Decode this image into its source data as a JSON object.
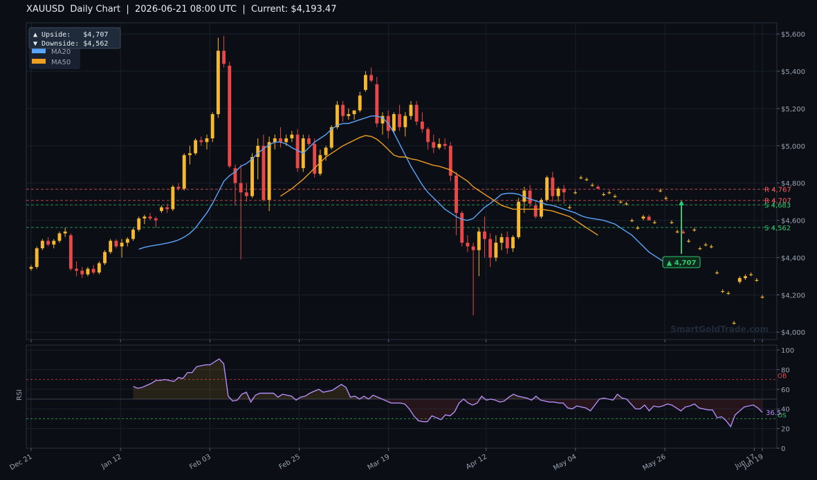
{
  "header": {
    "title": "XAUUSD  Daily Chart  |  2026-06-21 08:00 UTC  |  Current: $4,193.47"
  },
  "legend": {
    "upside": "▲ Upside:   $4,707",
    "downside": "▼ Downside: $4,562",
    "ma20_label": "MA20",
    "ma50_label": "MA50"
  },
  "watermark": "SmartGoldTrade.com",
  "target_label": "▲ 4,707",
  "chart_data": [
    {
      "type": "candlestick",
      "title": "XAUUSD Daily Chart",
      "ylim": [
        3960,
        5660
      ],
      "yticks": [
        4000,
        4200,
        4400,
        4600,
        4800,
        5000,
        5200,
        5400,
        5600
      ],
      "ytick_labels": [
        "$4,000",
        "$4,200",
        "$4,400",
        "$4,600",
        "$4,800",
        "$5,000",
        "$5,200",
        "$5,400",
        "$5,600"
      ],
      "xticks": [
        {
          "date": "2025-12-21",
          "label": "Dec 21"
        },
        {
          "date": "2026-01-12",
          "label": "Jan 12"
        },
        {
          "date": "2026-02-03",
          "label": "Feb 03"
        },
        {
          "date": "2026-02-25",
          "label": "Feb 25"
        },
        {
          "date": "2026-03-19",
          "label": "Mar 19"
        },
        {
          "date": "2026-04-12",
          "label": "Apr 12"
        },
        {
          "date": "2026-05-04",
          "label": "May 04"
        },
        {
          "date": "2026-05-26",
          "label": "May 26"
        },
        {
          "date": "2026-06-17",
          "label": "Jun 17"
        },
        {
          "date": "2026-06-19",
          "label": "Jun 19"
        }
      ],
      "date_range": [
        "2025-12-21",
        "2026-06-19"
      ],
      "ohlc": [
        [
          4340,
          4360,
          4330,
          4350
        ],
        [
          4350,
          4460,
          4340,
          4450
        ],
        [
          4450,
          4500,
          4440,
          4490
        ],
        [
          4490,
          4510,
          4460,
          4470
        ],
        [
          4470,
          4500,
          4450,
          4490
        ],
        [
          4490,
          4540,
          4480,
          4530
        ],
        [
          4530,
          4560,
          4510,
          4540
        ],
        [
          4520,
          4530,
          4330,
          4340
        ],
        [
          4340,
          4380,
          4300,
          4330
        ],
        [
          4330,
          4350,
          4290,
          4310
        ],
        [
          4310,
          4350,
          4300,
          4340
        ],
        [
          4340,
          4360,
          4310,
          4320
        ],
        [
          4320,
          4380,
          4310,
          4370
        ],
        [
          4370,
          4440,
          4360,
          4430
        ],
        [
          4430,
          4500,
          4420,
          4490
        ],
        [
          4490,
          4500,
          4450,
          4460
        ],
        [
          4460,
          4500,
          4400,
          4480
        ],
        [
          4480,
          4510,
          4460,
          4500
        ],
        [
          4500,
          4560,
          4490,
          4550
        ],
        [
          4550,
          4620,
          4540,
          4610
        ],
        [
          4610,
          4630,
          4580,
          4620
        ],
        [
          4620,
          4640,
          4600,
          4610
        ],
        [
          4610,
          4620,
          4560,
          4600
        ],
        [
          4650,
          4680,
          4640,
          4670
        ],
        [
          4670,
          4690,
          4640,
          4660
        ],
        [
          4660,
          4790,
          4650,
          4780
        ],
        [
          4780,
          4800,
          4760,
          4770
        ],
        [
          4770,
          4960,
          4760,
          4950
        ],
        [
          4950,
          5000,
          4900,
          4960
        ],
        [
          4960,
          5040,
          4950,
          5030
        ],
        [
          5030,
          5050,
          5000,
          5020
        ],
        [
          5020,
          5060,
          4980,
          5040
        ],
        [
          5040,
          5180,
          5020,
          5170
        ],
        [
          5170,
          5580,
          5150,
          5510
        ],
        [
          5510,
          5590,
          5420,
          5440
        ],
        [
          5430,
          5450,
          4880,
          4890
        ],
        [
          4880,
          4900,
          4680,
          4800
        ],
        [
          4800,
          4900,
          4390,
          4750
        ],
        [
          4750,
          4800,
          4700,
          4730
        ],
        [
          4730,
          4960,
          4720,
          4940
        ],
        [
          4940,
          5040,
          4820,
          5000
        ],
        [
          5000,
          5060,
          4700,
          4710
        ],
        [
          4710,
          5050,
          4650,
          5020
        ],
        [
          5020,
          5060,
          4980,
          5040
        ],
        [
          5040,
          5100,
          4990,
          5020
        ],
        [
          5020,
          5060,
          5000,
          5040
        ],
        [
          5040,
          5080,
          5020,
          5060
        ],
        [
          5060,
          5090,
          4860,
          4880
        ],
        [
          4880,
          5060,
          4860,
          5040
        ],
        [
          5040,
          5060,
          5000,
          5010
        ],
        [
          5010,
          5040,
          4830,
          4850
        ],
        [
          4850,
          4980,
          4840,
          4950
        ],
        [
          4950,
          5000,
          4920,
          4990
        ],
        [
          4990,
          5110,
          4980,
          5100
        ],
        [
          5100,
          5240,
          5090,
          5220
        ],
        [
          5220,
          5240,
          5130,
          5160
        ],
        [
          5160,
          5200,
          5140,
          5170
        ],
        [
          5170,
          5190,
          5140,
          5190
        ],
        [
          5190,
          5290,
          5180,
          5270
        ],
        [
          5300,
          5400,
          5290,
          5380
        ],
        [
          5380,
          5420,
          5340,
          5350
        ],
        [
          5330,
          5370,
          5100,
          5120
        ],
        [
          5120,
          5180,
          5060,
          5160
        ],
        [
          5160,
          5190,
          5040,
          5080
        ],
        [
          5080,
          5180,
          5070,
          5170
        ],
        [
          5170,
          5220,
          5080,
          5100
        ],
        [
          5100,
          5180,
          5050,
          5160
        ],
        [
          5160,
          5240,
          5140,
          5220
        ],
        [
          5220,
          5240,
          5110,
          5130
        ],
        [
          5130,
          5180,
          5070,
          5090
        ],
        [
          5090,
          5100,
          4980,
          5020
        ],
        [
          5020,
          5060,
          4960,
          4990
        ],
        [
          4990,
          5040,
          4980,
          5010
        ],
        [
          5010,
          5040,
          4980,
          5000
        ],
        [
          5000,
          5020,
          4810,
          4840
        ],
        [
          4840,
          4860,
          4520,
          4640
        ],
        [
          4640,
          4650,
          4460,
          4480
        ],
        [
          4480,
          4520,
          4430,
          4460
        ],
        [
          4460,
          4480,
          4090,
          4440
        ],
        [
          4440,
          4560,
          4300,
          4540
        ],
        [
          4540,
          4620,
          4400,
          4500
        ],
        [
          4500,
          4530,
          4350,
          4400
        ],
        [
          4400,
          4520,
          4380,
          4480
        ],
        [
          4480,
          4530,
          4440,
          4510
        ],
        [
          4510,
          4540,
          4420,
          4450
        ],
        [
          4450,
          4520,
          4430,
          4510
        ],
        [
          4510,
          4720,
          4500,
          4700
        ],
        [
          4700,
          4780,
          4640,
          4760
        ],
        [
          4760,
          4790,
          4670,
          4690
        ],
        [
          4680,
          4700,
          4610,
          4620
        ],
        [
          4620,
          4720,
          4610,
          4710
        ],
        [
          4710,
          4840,
          4700,
          4830
        ],
        [
          4830,
          4860,
          4700,
          4730
        ],
        [
          4730,
          4780,
          4700,
          4770
        ],
        [
          4770,
          4790,
          4690,
          4750
        ],
        [
          4670,
          4680,
          4660,
          4670
        ],
        [
          4750,
          4760,
          4740,
          4750
        ],
        [
          4830,
          4840,
          4820,
          4830
        ],
        [
          4820,
          4830,
          4810,
          4820
        ],
        [
          4790,
          4800,
          4780,
          4790
        ],
        [
          4780,
          4790,
          4770,
          4770
        ],
        [
          4740,
          4750,
          4730,
          4740
        ],
        [
          4750,
          4760,
          4740,
          4750
        ],
        [
          4730,
          4740,
          4720,
          4730
        ],
        [
          4700,
          4710,
          4690,
          4700
        ],
        [
          4690,
          4700,
          4680,
          4690
        ],
        [
          4600,
          4610,
          4590,
          4600
        ],
        [
          4560,
          4570,
          4550,
          4560
        ],
        [
          4610,
          4630,
          4600,
          4620
        ],
        [
          4620,
          4630,
          4600,
          4600
        ],
        [
          4590,
          4600,
          4580,
          4590
        ],
        [
          4760,
          4770,
          4750,
          4760
        ],
        [
          4720,
          4730,
          4710,
          4720
        ],
        [
          4590,
          4600,
          4580,
          4590
        ],
        [
          4540,
          4550,
          4530,
          4540
        ],
        [
          4540,
          4550,
          4530,
          4530
        ],
        [
          4490,
          4500,
          4480,
          4490
        ],
        [
          4550,
          4560,
          4540,
          4550
        ],
        [
          4450,
          4460,
          4440,
          4450
        ],
        [
          4470,
          4480,
          4460,
          4470
        ],
        [
          4460,
          4470,
          4450,
          4460
        ],
        [
          4320,
          4330,
          4310,
          4320
        ],
        [
          4220,
          4230,
          4210,
          4220
        ],
        [
          4210,
          4220,
          4200,
          4210
        ],
        [
          4050,
          4060,
          4040,
          4050
        ],
        [
          4270,
          4300,
          4260,
          4290
        ],
        [
          4290,
          4310,
          4280,
          4300
        ],
        [
          4310,
          4320,
          4300,
          4310
        ],
        [
          4280,
          4290,
          4270,
          4280
        ],
        [
          4190,
          4200,
          4180,
          4190
        ]
      ],
      "ma20": [
        4445,
        4455,
        4462,
        4467,
        4472,
        4478,
        4485,
        4495,
        4510,
        4530,
        4560,
        4600,
        4640,
        4690,
        4750,
        4810,
        4840,
        4860,
        4890,
        4905,
        4930,
        4960,
        4985,
        5005,
        5020,
        5020,
        5010,
        4990,
        4975,
        4960,
        4990,
        5020,
        5040,
        5060,
        5090,
        5110,
        5120,
        5120,
        5130,
        5140,
        5150,
        5160,
        5160,
        5150,
        5120,
        5070,
        5010,
        4950,
        4890,
        4840,
        4790,
        4750,
        4720,
        4690,
        4660,
        4640,
        4620,
        4605,
        4600,
        4610,
        4640,
        4670,
        4690,
        4715,
        4740,
        4745,
        4745,
        4740,
        4725,
        4715,
        4705,
        4695,
        4685,
        4680,
        4670,
        4660,
        4650,
        4640,
        4625,
        4615,
        4610,
        4605,
        4600,
        4590,
        4580,
        4560,
        4540,
        4520,
        4490,
        4460,
        4430,
        4410,
        4390,
        4370,
        4350
      ],
      "ma50": [
        4730,
        4750,
        4770,
        4795,
        4820,
        4850,
        4880,
        4910,
        4940,
        4960,
        4980,
        5000,
        5015,
        5030,
        5045,
        5055,
        5050,
        5035,
        5010,
        4980,
        4950,
        4940,
        4940,
        4930,
        4925,
        4915,
        4905,
        4895,
        4890,
        4880,
        4870,
        4850,
        4830,
        4810,
        4780,
        4760,
        4740,
        4720,
        4700,
        4680,
        4670,
        4660,
        4660,
        4660,
        4660,
        4660,
        4660,
        4655,
        4650,
        4640,
        4630,
        4620,
        4600,
        4580,
        4560,
        4540,
        4520
      ],
      "ma50_start_index": 74,
      "levels": [
        {
          "label": "R 4,767",
          "value": 4767,
          "color": "#ff5f5f"
        },
        {
          "label": "R 4,707",
          "value": 4707,
          "color": "#ff5f5f"
        },
        {
          "label": "S 4,683",
          "value": 4683,
          "color": "#2ecc71"
        },
        {
          "label": "S 4,562",
          "value": 4562,
          "color": "#2ecc71"
        }
      ],
      "target": {
        "from": 4420,
        "to": 4707,
        "label": "▲ 4,707"
      },
      "colors": {
        "up": "#f5b82e",
        "down": "#e84848",
        "ma20": "#5aa6ff",
        "ma50": "#f0a020"
      }
    },
    {
      "type": "line",
      "ylabel": "RSI",
      "ylim": [
        0,
        105
      ],
      "yticks": [
        0,
        20,
        40,
        60,
        80,
        100
      ],
      "ytick_labels": [
        "0",
        "20",
        "40",
        "60",
        "80",
        "100"
      ],
      "overbought": 70,
      "oversold": 30,
      "ob_label": "OB",
      "os_label": "OS",
      "current_label": "36.5",
      "values": [
        63,
        61,
        62,
        64,
        66,
        69,
        69,
        70,
        69,
        68,
        72,
        71,
        77,
        77,
        83,
        84,
        85,
        85,
        88,
        91,
        86,
        53,
        48,
        49,
        55,
        57,
        47,
        54,
        56,
        56,
        56,
        56,
        52,
        55,
        54,
        53,
        49,
        52,
        53,
        56,
        58,
        60,
        57,
        58,
        59,
        62,
        65,
        62,
        52,
        53,
        50,
        53,
        50,
        54,
        52,
        50,
        48,
        46,
        46,
        46,
        45,
        40,
        33,
        28,
        27,
        27,
        33,
        31,
        29,
        34,
        33,
        37,
        46,
        50,
        46,
        44,
        46,
        53,
        49,
        50,
        49,
        47,
        48,
        52,
        55,
        53,
        52,
        51,
        49,
        53,
        49,
        48,
        47,
        47,
        46,
        46,
        41,
        40,
        43,
        42,
        41,
        38,
        44,
        50,
        51,
        50,
        49,
        55,
        51,
        50,
        45,
        40,
        40,
        44,
        38,
        43,
        42,
        43,
        45,
        44,
        41,
        38,
        42,
        43,
        45,
        41,
        40,
        39,
        39,
        31,
        32,
        28,
        22,
        34,
        38,
        42,
        43,
        44,
        41,
        36.5
      ],
      "color": "#b48cf5"
    }
  ]
}
